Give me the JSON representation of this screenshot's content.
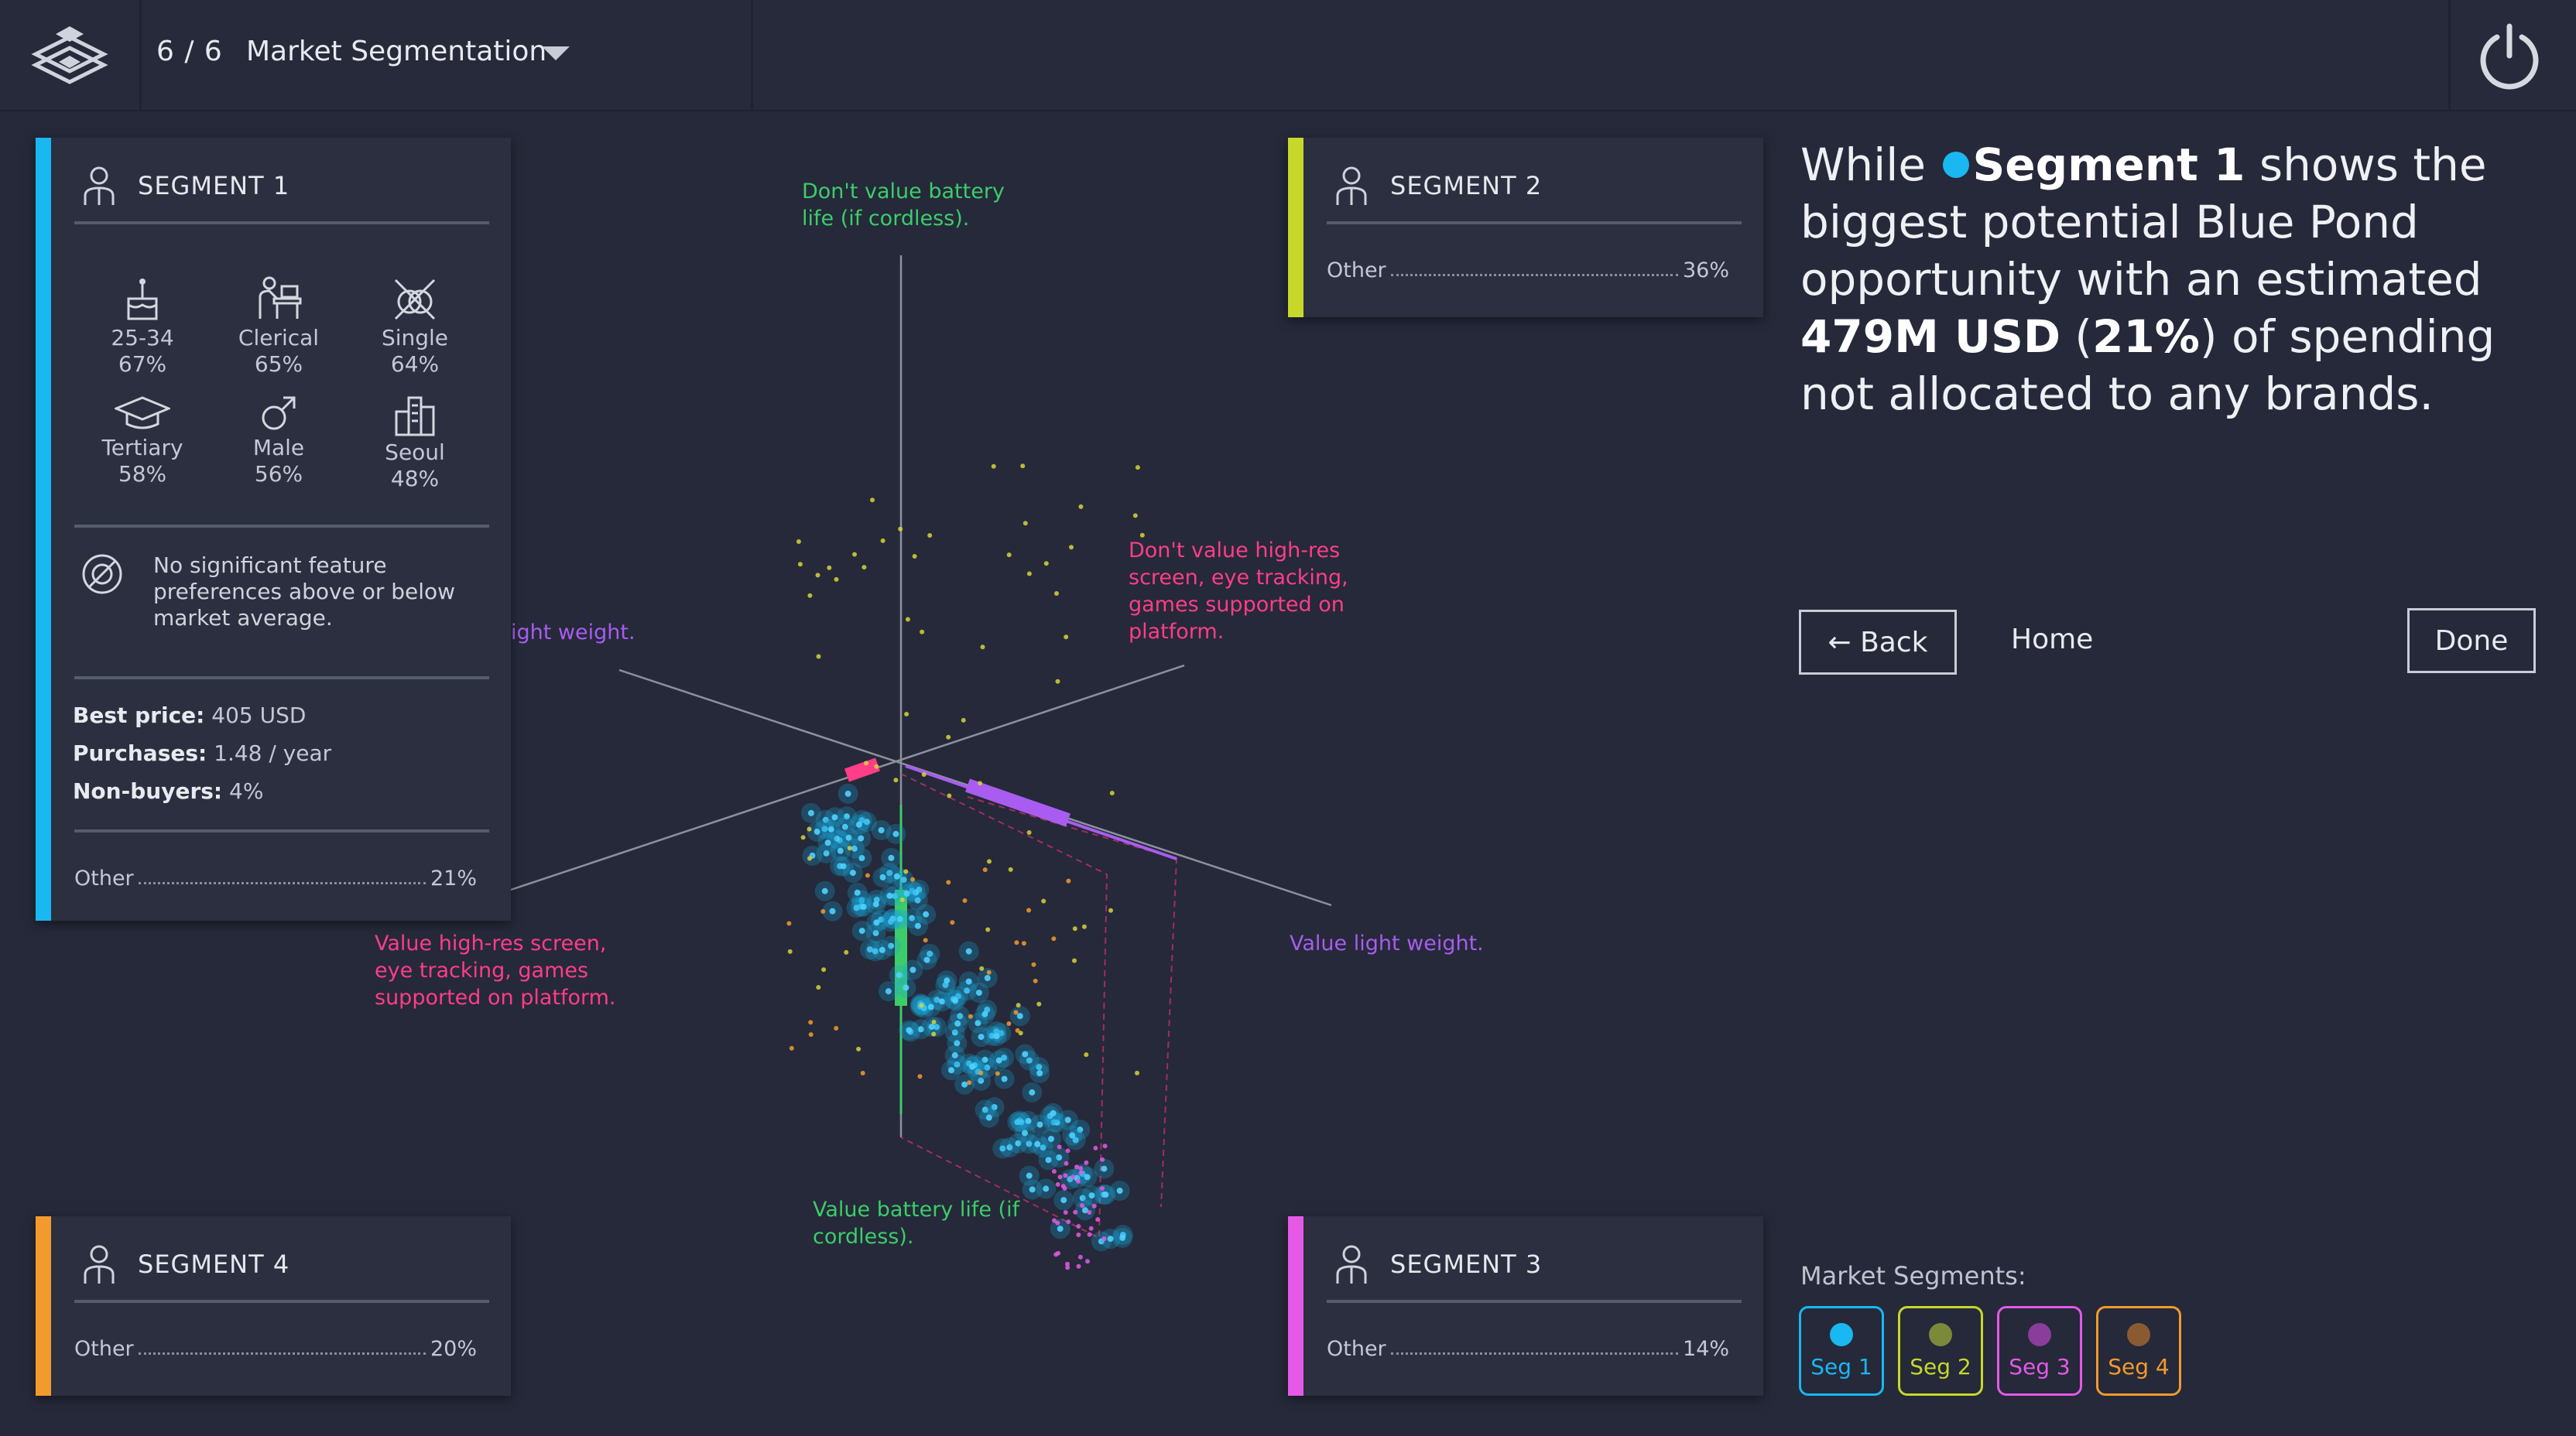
{
  "header": {
    "counter": "6 / 6",
    "title": "Market Segmentation"
  },
  "segment1": {
    "title": "SEGMENT 1",
    "color": "#19b8f0",
    "demographics": [
      {
        "icon": "birthday-cake-icon",
        "label": "25-34",
        "pct": "67%"
      },
      {
        "icon": "desk-worker-icon",
        "label": "Clerical",
        "pct": "65%"
      },
      {
        "icon": "no-rings-icon",
        "label": "Single",
        "pct": "64%"
      },
      {
        "icon": "graduation-cap-icon",
        "label": "Tertiary",
        "pct": "58%"
      },
      {
        "icon": "male-symbol-icon",
        "label": "Male",
        "pct": "56%"
      },
      {
        "icon": "city-buildings-icon",
        "label": "Seoul",
        "pct": "48%"
      }
    ],
    "note": "No significant feature preferences above or below market average.",
    "best_price_label": "Best price:",
    "best_price": "405 USD",
    "purchases_label": "Purchases:",
    "purchases": "1.48 / year",
    "nonbuyers_label": "Non-buyers:",
    "nonbuyers": "4%",
    "other_label": "Other",
    "other_pct": "21%"
  },
  "segment2": {
    "title": "SEGMENT 2",
    "color": "#c6d82a",
    "other_label": "Other",
    "other_pct": "36%"
  },
  "segment3": {
    "title": "SEGMENT 3",
    "color": "#e459e6",
    "other_label": "Other",
    "other_pct": "14%"
  },
  "segment4": {
    "title": "SEGMENT 4",
    "color": "#f39a2e",
    "other_label": "Other",
    "other_pct": "20%"
  },
  "axes": {
    "battery_top": "Don't value battery life (if cordless).",
    "battery_bottom": "Value battery life (if cordless).",
    "screen_top": "Don't value high-res screen, eye tracking, games supported on platform.",
    "screen_bottom": "Value high-res screen, eye tracking, games supported on platform.",
    "weight_right": "Value light weight.",
    "weight_left": "ight weight."
  },
  "summary": {
    "pre": "While",
    "segment": "Segment 1",
    "mid": "shows the biggest potential Blue Pond opportunity with an estimated",
    "amount": "479M USD",
    "paren_open": " (",
    "pct": "21%",
    "paren_close": ")",
    "post": " of spending not allocated to any brands."
  },
  "nav": {
    "back": "← Back",
    "home": "Home",
    "done": "Done"
  },
  "market_segments": {
    "label": "Market Segments:",
    "items": [
      {
        "label": "Seg 1",
        "color": "#19b8f0",
        "dot": "#19b8f0"
      },
      {
        "label": "Seg 2",
        "color": "#c6d82a",
        "dot": "#7a8a3a"
      },
      {
        "label": "Seg 3",
        "color": "#e459e6",
        "dot": "#8a3d9a"
      },
      {
        "label": "Seg 4",
        "color": "#f39a2e",
        "dot": "#8a5a33"
      }
    ]
  }
}
